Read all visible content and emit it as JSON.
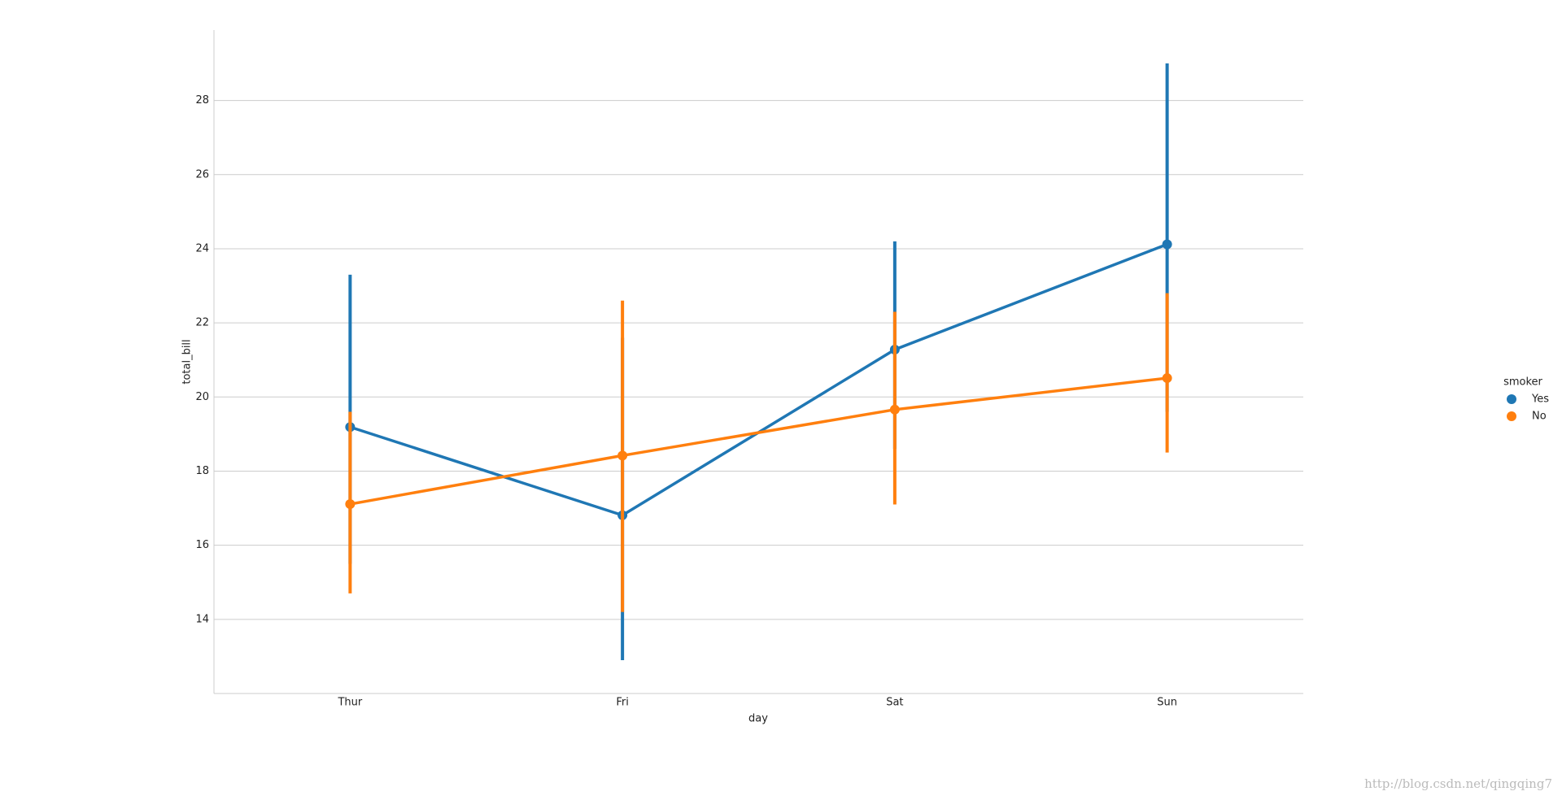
{
  "chart_data": {
    "type": "pointplot",
    "x_label": "day",
    "y_label": "total_bill",
    "categories": [
      "Thur",
      "Fri",
      "Sat",
      "Sun"
    ],
    "series": [
      {
        "name": "Yes",
        "color": "#1f77b4",
        "values": [
          19.19,
          16.81,
          21.28,
          24.12
        ],
        "ci_low": [
          15.5,
          12.9,
          18.6,
          19.6
        ],
        "ci_high": [
          23.3,
          21.6,
          24.2,
          29.0
        ]
      },
      {
        "name": "No",
        "color": "#ff7f0e",
        "values": [
          17.11,
          18.42,
          19.66,
          20.51
        ],
        "ci_low": [
          14.7,
          14.2,
          17.1,
          18.5
        ],
        "ci_high": [
          19.6,
          22.6,
          22.3,
          22.8
        ]
      }
    ],
    "ylim": [
      12.0,
      29.9
    ],
    "yticks": [
      14,
      16,
      18,
      20,
      22,
      24,
      26,
      28
    ],
    "grid": true,
    "legend_title": "smoker",
    "legend_position": "right",
    "watermark": "http://blog.csdn.net/qingqing7"
  }
}
